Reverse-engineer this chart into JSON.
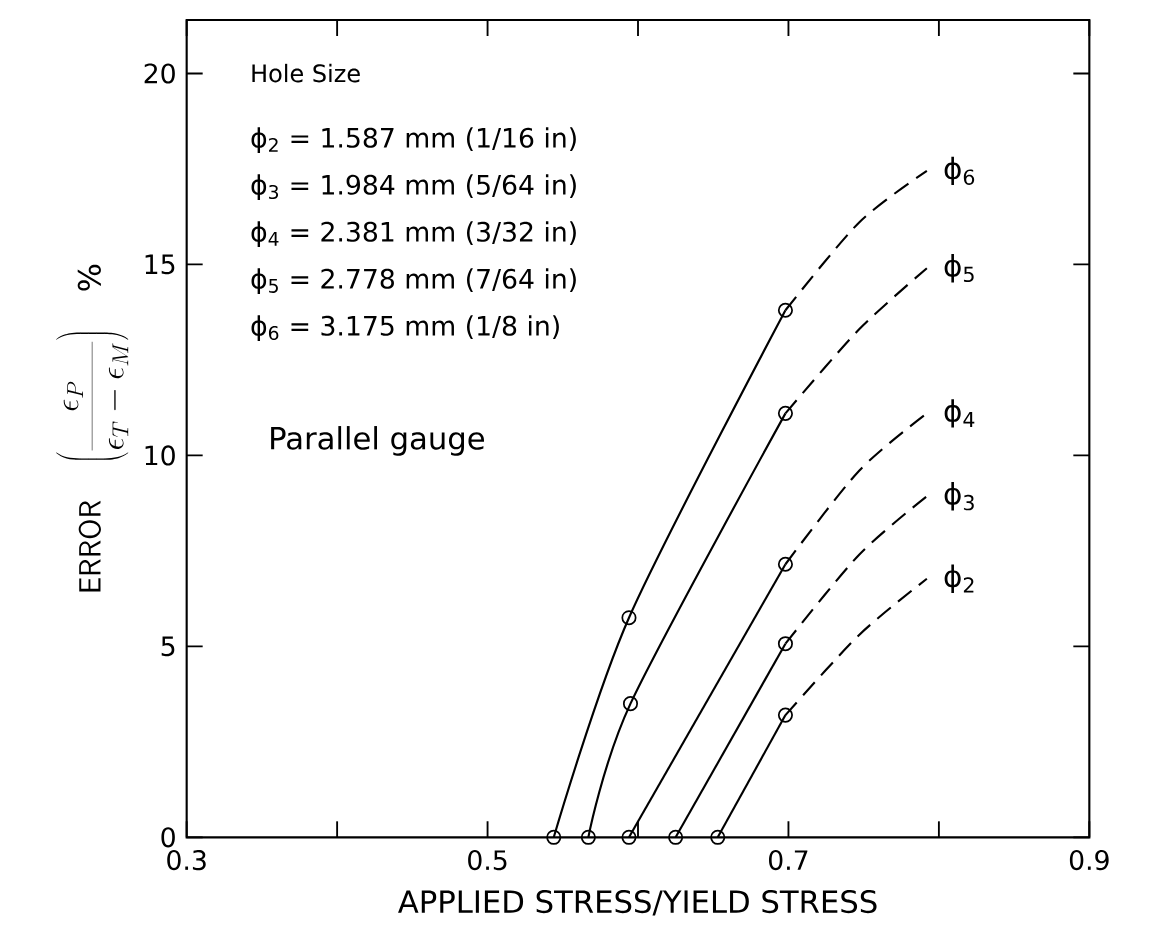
{
  "chart_data": {
    "type": "line",
    "xlabel": "APPLIED STRESS/YIELD STRESS",
    "ylabel": "\\mathsf{ERROR}\\quad\\left(\\frac{\\epsilon_{P}}{\\epsilon_{T}-\\epsilon_{M}}\\right)\\quad\\%",
    "xlim": [
      0.3,
      0.9
    ],
    "ylim": [
      0,
      21.4
    ],
    "xticks": [
      0.3,
      {
        "value": 0.4,
        "label": null
      },
      0.5,
      {
        "value": 0.6,
        "label": null
      },
      0.7,
      {
        "value": 0.8,
        "label": null
      },
      0.9
    ],
    "yticks": [
      0,
      5,
      10,
      15,
      20
    ],
    "annotations": [
      "Hole Size",
      "ϕ$_{2}$ = 1.587 mm (1/16 in)",
      "ϕ$_{3}$ = 1.984 mm (5/64 in)",
      "ϕ$_{4}$ = 2.381 mm (3/32 in)",
      "ϕ$_{5}$ = 2.778 mm (7/64 in)",
      "ϕ$_{6}$ = 3.175 mm (1/8 in)",
      "Parallel gauge"
    ],
    "series": [
      {
        "x": [
          0.544,
          0.594,
          0.698
        ],
        "values": [
          0,
          5.75,
          13.8
        ],
        "color": "#000000",
        "line_style": "solid",
        "marker": "circle"
      },
      {
        "name": "ϕ$_{6}$",
        "x": [
          0.698,
          0.747,
          0.792
        ],
        "values": [
          13.8,
          16.1,
          17.45
        ],
        "color": "#000000",
        "line_style": "dashed",
        "marker": "none"
      },
      {
        "x": [
          0.567,
          0.595,
          0.698
        ],
        "values": [
          0,
          3.5,
          11.1
        ],
        "color": "#000000",
        "line_style": "solid",
        "marker": "circle"
      },
      {
        "name": "ϕ$_{5}$",
        "x": [
          0.698,
          0.747,
          0.792
        ],
        "values": [
          11.1,
          13.3,
          14.9
        ],
        "color": "#000000",
        "line_style": "dashed",
        "marker": "none"
      },
      {
        "x": [
          0.594,
          0.698
        ],
        "values": [
          0,
          7.15
        ],
        "color": "#000000",
        "line_style": "solid",
        "marker": "circle"
      },
      {
        "name": "ϕ$_{4}$",
        "x": [
          0.698,
          0.747,
          0.792
        ],
        "values": [
          7.15,
          9.6,
          11.1
        ],
        "color": "#000000",
        "line_style": "dashed",
        "marker": "none"
      },
      {
        "x": [
          0.625,
          0.698
        ],
        "values": [
          0,
          5.07
        ],
        "color": "#000000",
        "line_style": "solid",
        "marker": "circle"
      },
      {
        "name": "ϕ$_{3}$",
        "x": [
          0.698,
          0.747,
          0.792
        ],
        "values": [
          5.07,
          7.4,
          8.93
        ],
        "color": "#000000",
        "line_style": "dashed",
        "marker": "none"
      },
      {
        "x": [
          0.653,
          0.698
        ],
        "values": [
          0,
          3.2
        ],
        "color": "#000000",
        "line_style": "solid",
        "marker": "circle"
      },
      {
        "name": "ϕ$_{2}$",
        "x": [
          0.698,
          0.747,
          0.792
        ],
        "values": [
          3.2,
          5.3,
          6.77
        ],
        "color": "#000000",
        "line_style": "dashed",
        "marker": "none"
      }
    ]
  }
}
